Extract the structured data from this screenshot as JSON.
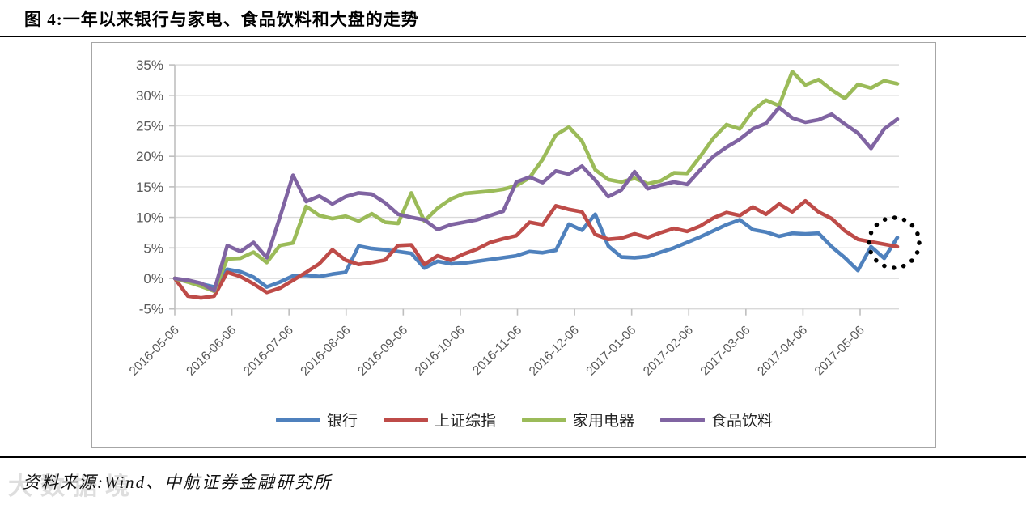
{
  "page": {
    "title": "图 4:一年以来银行与家电、食品饮料和大盘的走势",
    "source_label": "资料来源:Wind、中航证券金融研究所",
    "watermark_text": "大数据境"
  },
  "chart_data": {
    "type": "line",
    "title": "",
    "xlabel": "",
    "ylabel": "",
    "ylim": [
      -5,
      35
    ],
    "yticks": [
      35,
      30,
      25,
      20,
      15,
      10,
      5,
      0,
      -5
    ],
    "ytick_suffix": "%",
    "grid": true,
    "legend_position": "bottom",
    "axis_label_color": "#595959",
    "gridline_color": "#d9d9d9",
    "frame_color": "#a6a6a6",
    "xticks": [
      "2016-05-06",
      "2016-06-06",
      "2016-07-06",
      "2016-08-06",
      "2016-09-06",
      "2016-10-06",
      "2016-11-06",
      "2016-12-06",
      "2017-01-06",
      "2017-02-06",
      "2017-03-06",
      "2017-04-06",
      "2017-05-06"
    ],
    "x": [
      "2016-05-06",
      "2016-05-13",
      "2016-05-20",
      "2016-05-27",
      "2016-06-03",
      "2016-06-10",
      "2016-06-17",
      "2016-06-24",
      "2016-07-01",
      "2016-07-08",
      "2016-07-15",
      "2016-07-22",
      "2016-07-29",
      "2016-08-05",
      "2016-08-12",
      "2016-08-19",
      "2016-08-26",
      "2016-09-02",
      "2016-09-09",
      "2016-09-16",
      "2016-09-23",
      "2016-09-30",
      "2016-10-07",
      "2016-10-14",
      "2016-10-21",
      "2016-10-28",
      "2016-11-04",
      "2016-11-11",
      "2016-11-18",
      "2016-11-25",
      "2016-12-02",
      "2016-12-09",
      "2016-12-16",
      "2016-12-23",
      "2016-12-30",
      "2017-01-06",
      "2017-01-13",
      "2017-01-20",
      "2017-01-26",
      "2017-02-03",
      "2017-02-10",
      "2017-02-17",
      "2017-02-24",
      "2017-03-03",
      "2017-03-10",
      "2017-03-17",
      "2017-03-24",
      "2017-03-31",
      "2017-04-07",
      "2017-04-14",
      "2017-04-21",
      "2017-04-28",
      "2017-05-05",
      "2017-05-12",
      "2017-05-19",
      "2017-05-26"
    ],
    "series": [
      {
        "name": "银行",
        "color": "#4f81bd",
        "values": [
          0,
          -0.4,
          -0.9,
          -1.4,
          1.5,
          1.1,
          0.2,
          -1.4,
          -0.6,
          0.4,
          0.5,
          0.3,
          0.7,
          1.0,
          5.3,
          4.9,
          4.7,
          4.4,
          4.1,
          1.7,
          2.8,
          2.4,
          2.5,
          2.8,
          3.1,
          3.4,
          3.7,
          4.4,
          4.2,
          4.6,
          8.9,
          7.9,
          10.5,
          5.3,
          3.5,
          3.4,
          3.6,
          4.3,
          5.0,
          5.9,
          6.8,
          7.8,
          8.8,
          9.6,
          8.0,
          7.6,
          6.9,
          7.4,
          7.3,
          7.4,
          5.2,
          3.4,
          1.3,
          5.2,
          3.3,
          6.7
        ]
      },
      {
        "name": "上证综指",
        "color": "#be4b48",
        "values": [
          0,
          -2.9,
          -3.2,
          -2.9,
          1.0,
          0.3,
          -0.9,
          -2.3,
          -1.6,
          -0.3,
          1.0,
          2.4,
          4.7,
          3.0,
          2.3,
          2.6,
          3.0,
          5.4,
          5.5,
          2.3,
          3.7,
          3.0,
          4.0,
          4.8,
          5.9,
          6.5,
          7.0,
          9.2,
          8.8,
          11.9,
          11.3,
          10.9,
          7.2,
          6.4,
          6.6,
          7.3,
          6.7,
          7.5,
          8.2,
          7.7,
          8.6,
          9.9,
          10.8,
          10.3,
          11.7,
          10.5,
          12.2,
          10.9,
          12.7,
          10.9,
          9.8,
          7.8,
          6.4,
          6.0,
          5.6,
          5.2
        ]
      },
      {
        "name": "家用电器",
        "color": "#9bbb59",
        "values": [
          0,
          -0.6,
          -1.3,
          -2.1,
          3.2,
          3.3,
          4.3,
          2.6,
          5.4,
          5.8,
          11.8,
          10.3,
          9.8,
          10.2,
          9.4,
          10.6,
          9.2,
          9.0,
          14.0,
          9.4,
          11.5,
          13.0,
          13.9,
          14.1,
          14.3,
          14.6,
          15.2,
          16.5,
          19.5,
          23.5,
          24.8,
          22.5,
          17.8,
          16.2,
          15.8,
          16.4,
          15.5,
          16.0,
          17.3,
          17.2,
          20.0,
          23.0,
          25.2,
          24.5,
          27.5,
          29.2,
          28.3,
          33.9,
          31.7,
          32.6,
          30.9,
          29.5,
          31.8,
          31.2,
          32.4,
          31.9
        ]
      },
      {
        "name": "食品饮料",
        "color": "#8064a2",
        "values": [
          0,
          -0.3,
          -0.8,
          -2.0,
          5.4,
          4.4,
          5.9,
          3.4,
          10.0,
          16.9,
          12.6,
          13.5,
          12.2,
          13.4,
          14.0,
          13.8,
          12.4,
          10.5,
          10.0,
          9.6,
          8.0,
          8.8,
          9.2,
          9.6,
          10.3,
          11.0,
          15.8,
          16.6,
          15.7,
          17.6,
          17.1,
          18.4,
          16.1,
          13.4,
          14.5,
          17.5,
          14.7,
          15.3,
          15.8,
          15.4,
          17.8,
          20.0,
          21.5,
          22.8,
          24.5,
          25.4,
          28.0,
          26.3,
          25.6,
          26.0,
          26.9,
          25.3,
          23.8,
          21.3,
          24.5,
          26.1
        ]
      }
    ],
    "annotation": {
      "shape": "dotted-circle",
      "note": "hand-drawn dotted circle highlighting the final points of 银行 and 上证综指"
    }
  }
}
